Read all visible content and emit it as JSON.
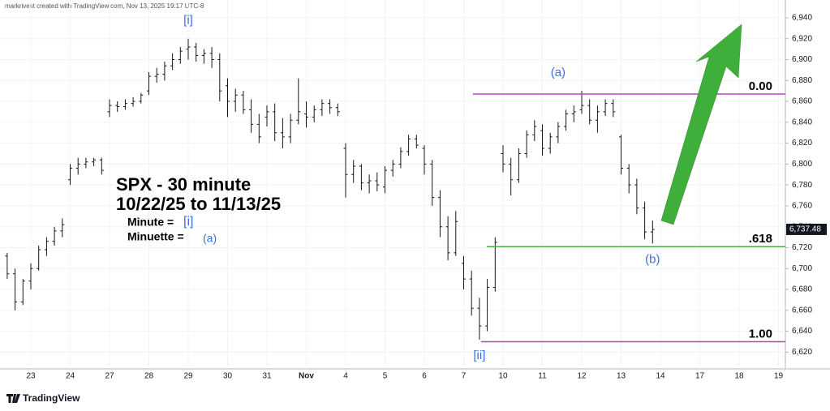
{
  "header": "markrivest created with TradingView.com, Nov 13, 2025 19:17 UTC-8",
  "brand": "TradingView",
  "chart_data": {
    "type": "ohlc",
    "title": "SPX - 30  minute",
    "subtitle": "10/22/25 to 11/13/25",
    "legend_lines": [
      {
        "text": "Minute =",
        "tag": "[i]"
      },
      {
        "text": "Minuette =",
        "tag": "(a)"
      }
    ],
    "color": "#131722",
    "x_labels": [
      "23",
      "24",
      "27",
      "28",
      "29",
      "30",
      "31",
      "Nov",
      "4",
      "5",
      "6",
      "7",
      "10",
      "11",
      "12",
      "13",
      "14",
      "17",
      "18",
      "19"
    ],
    "ylim": [
      6604,
      6957
    ],
    "yticks": [
      {
        "value": 6620,
        "label": "6,620"
      },
      {
        "value": 6640,
        "label": "6,640"
      },
      {
        "value": 6660,
        "label": "6,660"
      },
      {
        "value": 6680,
        "label": "6,680"
      },
      {
        "value": 6700,
        "label": "6,700"
      },
      {
        "value": 6720,
        "label": "6,720"
      },
      {
        "value": 6740,
        "label": "6,740"
      },
      {
        "value": 6760,
        "label": "6,760"
      },
      {
        "value": 6780,
        "label": "6,780"
      },
      {
        "value": 6800,
        "label": "6,800"
      },
      {
        "value": 6820,
        "label": "6,820"
      },
      {
        "value": 6840,
        "label": "6,840"
      },
      {
        "value": 6860,
        "label": "6,860"
      },
      {
        "value": 6880,
        "label": "6,880"
      },
      {
        "value": 6900,
        "label": "6,900"
      },
      {
        "value": 6920,
        "label": "6,920"
      },
      {
        "value": 6940,
        "label": "6,940"
      }
    ],
    "grid": true,
    "last_price": {
      "value": 6737.48,
      "label": "6,737.48"
    },
    "ohlc": [
      [
        6712,
        6715,
        6690,
        6695
      ],
      [
        6695,
        6700,
        6660,
        6668
      ],
      [
        6668,
        6690,
        6665,
        6688
      ],
      [
        6688,
        6705,
        6680,
        6700
      ],
      [
        6700,
        6722,
        6698,
        6718
      ],
      [
        6718,
        6730,
        6712,
        6726
      ],
      [
        6726,
        6740,
        6722,
        6736
      ],
      [
        6736,
        6748,
        6730,
        6742
      ],
      [
        6785,
        6800,
        6780,
        6796
      ],
      [
        6796,
        6806,
        6790,
        6800
      ],
      [
        6800,
        6806,
        6796,
        6802
      ],
      [
        6802,
        6806,
        6798,
        6804
      ],
      [
        6804,
        6806,
        6790,
        6794
      ],
      [
        6850,
        6862,
        6845,
        6856
      ],
      [
        6856,
        6860,
        6850,
        6855
      ],
      [
        6855,
        6862,
        6852,
        6858
      ],
      [
        6858,
        6864,
        6855,
        6860
      ],
      [
        6860,
        6868,
        6858,
        6866
      ],
      [
        6870,
        6888,
        6866,
        6884
      ],
      [
        6884,
        6892,
        6878,
        6886
      ],
      [
        6886,
        6898,
        6880,
        6894
      ],
      [
        6894,
        6906,
        6890,
        6900
      ],
      [
        6900,
        6912,
        6896,
        6908
      ],
      [
        6910,
        6920,
        6900,
        6912
      ],
      [
        6912,
        6916,
        6898,
        6904
      ],
      [
        6904,
        6910,
        6896,
        6906
      ],
      [
        6906,
        6912,
        6892,
        6900
      ],
      [
        6900,
        6906,
        6860,
        6870
      ],
      [
        6875,
        6882,
        6845,
        6860
      ],
      [
        6860,
        6872,
        6850,
        6866
      ],
      [
        6866,
        6870,
        6848,
        6852
      ],
      [
        6852,
        6862,
        6830,
        6838
      ],
      [
        6838,
        6848,
        6820,
        6826
      ],
      [
        6845,
        6856,
        6836,
        6850
      ],
      [
        6850,
        6858,
        6822,
        6830
      ],
      [
        6830,
        6844,
        6815,
        6826
      ],
      [
        6826,
        6848,
        6820,
        6842
      ],
      [
        6842,
        6882,
        6838,
        6850
      ],
      [
        6848,
        6860,
        6835,
        6845
      ],
      [
        6845,
        6856,
        6840,
        6852
      ],
      [
        6852,
        6862,
        6846,
        6858
      ],
      [
        6858,
        6862,
        6848,
        6854
      ],
      [
        6854,
        6858,
        6846,
        6850
      ],
      [
        6815,
        6820,
        6768,
        6790
      ],
      [
        6790,
        6804,
        6782,
        6798
      ],
      [
        6798,
        6800,
        6775,
        6782
      ],
      [
        6782,
        6790,
        6772,
        6784
      ],
      [
        6784,
        6792,
        6774,
        6780
      ],
      [
        6778,
        6798,
        6772,
        6794
      ],
      [
        6794,
        6804,
        6788,
        6800
      ],
      [
        6800,
        6816,
        6796,
        6812
      ],
      [
        6812,
        6828,
        6808,
        6824
      ],
      [
        6824,
        6828,
        6815,
        6818
      ],
      [
        6815,
        6818,
        6790,
        6800
      ],
      [
        6800,
        6804,
        6760,
        6768
      ],
      [
        6768,
        6775,
        6730,
        6740
      ],
      [
        6740,
        6750,
        6708,
        6715
      ],
      [
        6715,
        6755,
        6712,
        6745
      ],
      [
        6705,
        6712,
        6680,
        6690
      ],
      [
        6690,
        6698,
        6655,
        6662
      ],
      [
        6662,
        6672,
        6632,
        6645
      ],
      [
        6645,
        6690,
        6640,
        6682
      ],
      [
        6682,
        6730,
        6678,
        6725
      ],
      [
        6810,
        6818,
        6792,
        6800
      ],
      [
        6800,
        6806,
        6770,
        6785
      ],
      [
        6785,
        6815,
        6782,
        6810
      ],
      [
        6810,
        6832,
        6806,
        6828
      ],
      [
        6828,
        6842,
        6822,
        6836
      ],
      [
        6832,
        6838,
        6808,
        6815
      ],
      [
        6815,
        6830,
        6810,
        6826
      ],
      [
        6826,
        6840,
        6820,
        6836
      ],
      [
        6836,
        6852,
        6832,
        6848
      ],
      [
        6848,
        6856,
        6840,
        6850
      ],
      [
        6852,
        6870,
        6848,
        6856
      ],
      [
        6856,
        6862,
        6838,
        6842
      ],
      [
        6842,
        6856,
        6830,
        6850
      ],
      [
        6850,
        6862,
        6846,
        6858
      ],
      [
        6858,
        6862,
        6845,
        6850
      ],
      [
        6826,
        6828,
        6790,
        6796
      ],
      [
        6796,
        6800,
        6772,
        6780
      ],
      [
        6780,
        6786,
        6752,
        6758
      ],
      [
        6758,
        6764,
        6728,
        6735
      ],
      [
        6735,
        6746,
        6724,
        6737.48
      ]
    ],
    "levels": [
      {
        "label": "0.00",
        "value": 6867,
        "color": "#c040c8"
      },
      {
        "label": ".618",
        "value": 6721,
        "color": "#4caf50"
      },
      {
        "label": "1.00",
        "value": 6630,
        "color": "#c040c8"
      }
    ],
    "wave_labels": [
      {
        "text": "[i]",
        "value": 6920,
        "bar": 23
      },
      {
        "text": "[ii]",
        "value": 6632,
        "bar": 60
      },
      {
        "text": "(a)",
        "value": 6870,
        "bar": 70
      },
      {
        "text": "(b)",
        "value": 6724,
        "bar": 82
      }
    ]
  }
}
